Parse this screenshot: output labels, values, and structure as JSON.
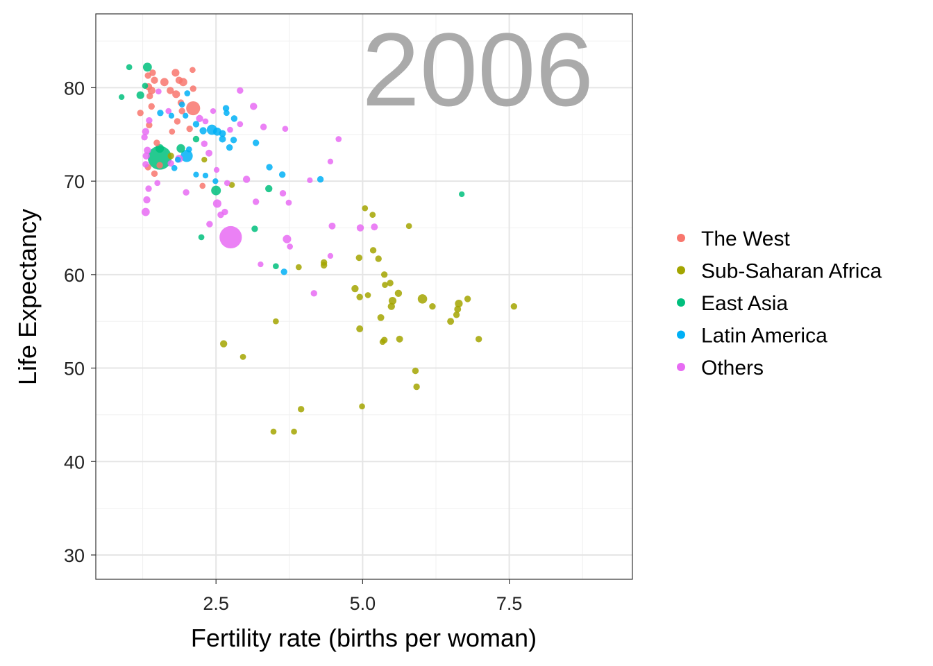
{
  "chart_data": {
    "type": "scatter",
    "title": "",
    "annotation": "2006",
    "xlabel": "Fertility rate (births per woman)",
    "ylabel": "Life Expectancy",
    "xlim": [
      0.45,
      9.6
    ],
    "ylim": [
      27.4,
      87.9
    ],
    "xticks": [
      2.5,
      5.0,
      7.5
    ],
    "xtick_labels": [
      "2.5",
      "5.0",
      "7.5"
    ],
    "yticks": [
      30,
      40,
      50,
      60,
      70,
      80
    ],
    "ytick_labels": [
      "30",
      "40",
      "50",
      "60",
      "70",
      "80"
    ],
    "grid": true,
    "legend_position": "right",
    "size_variable": "population (millions, approx.)",
    "series": [
      {
        "name": "The West",
        "color": "#F8766D",
        "points": [
          [
            1.34,
            81.3,
            10
          ],
          [
            1.42,
            81.6,
            10
          ],
          [
            1.45,
            80.8,
            20
          ],
          [
            1.35,
            80.1,
            20
          ],
          [
            1.4,
            79.7,
            30
          ],
          [
            1.37,
            79.1,
            10
          ],
          [
            1.4,
            78.0,
            10
          ],
          [
            1.21,
            77.3,
            10
          ],
          [
            1.36,
            76.0,
            10
          ],
          [
            1.34,
            71.5,
            10
          ],
          [
            1.45,
            70.8,
            10
          ],
          [
            1.62,
            80.6,
            40
          ],
          [
            1.72,
            79.7,
            20
          ],
          [
            1.81,
            81.6,
            30
          ],
          [
            1.87,
            80.8,
            20
          ],
          [
            1.94,
            80.6,
            40
          ],
          [
            1.82,
            79.3,
            30
          ],
          [
            1.9,
            78.4,
            10
          ],
          [
            2.11,
            77.8,
            300
          ],
          [
            2.1,
            81.9,
            5
          ],
          [
            1.92,
            77.5,
            10
          ],
          [
            1.75,
            75.3,
            5
          ],
          [
            1.49,
            74.1,
            10
          ],
          [
            2.11,
            79.9,
            10
          ],
          [
            2.27,
            69.5,
            5
          ],
          [
            1.54,
            71.7,
            10
          ],
          [
            2.05,
            75.6,
            10
          ],
          [
            1.84,
            76.4,
            10
          ]
        ]
      },
      {
        "name": "Sub-Saharan Africa",
        "color": "#A3A500",
        "points": [
          [
            2.77,
            69.6,
            5
          ],
          [
            2.3,
            72.3,
            3
          ],
          [
            1.73,
            72.7,
            10
          ],
          [
            5.04,
            67.1,
            5
          ],
          [
            5.17,
            66.4,
            5
          ],
          [
            5.79,
            65.2,
            5
          ],
          [
            5.18,
            62.6,
            10
          ],
          [
            5.27,
            61.7,
            10
          ],
          [
            4.94,
            61.8,
            10
          ],
          [
            5.37,
            60.0,
            10
          ],
          [
            4.34,
            61.3,
            10
          ],
          [
            4.34,
            61.0,
            10
          ],
          [
            3.91,
            60.8,
            5
          ],
          [
            4.87,
            58.5,
            20
          ],
          [
            4.95,
            57.6,
            10
          ],
          [
            5.09,
            57.8,
            5
          ],
          [
            5.38,
            58.9,
            5
          ],
          [
            5.47,
            59.1,
            10
          ],
          [
            5.61,
            58.0,
            20
          ],
          [
            5.51,
            57.2,
            30
          ],
          [
            5.49,
            56.6,
            20
          ],
          [
            6.02,
            57.4,
            75
          ],
          [
            6.19,
            56.6,
            10
          ],
          [
            5.31,
            55.4,
            15
          ],
          [
            6.64,
            56.9,
            30
          ],
          [
            6.62,
            56.3,
            15
          ],
          [
            6.79,
            57.4,
            10
          ],
          [
            6.6,
            55.7,
            10
          ],
          [
            6.5,
            55.0,
            15
          ],
          [
            7.58,
            56.6,
            10
          ],
          [
            4.95,
            54.2,
            15
          ],
          [
            3.52,
            55.0,
            5
          ],
          [
            5.63,
            53.1,
            15
          ],
          [
            5.37,
            53.0,
            10
          ],
          [
            5.34,
            52.8,
            5
          ],
          [
            6.98,
            53.1,
            10
          ],
          [
            2.63,
            52.6,
            20
          ],
          [
            2.96,
            51.2,
            5
          ],
          [
            5.9,
            49.7,
            10
          ],
          [
            5.92,
            48.0,
            10
          ],
          [
            3.95,
            45.6,
            10
          ],
          [
            4.99,
            45.9,
            5
          ],
          [
            3.48,
            43.2,
            5
          ],
          [
            3.83,
            43.2,
            5
          ]
        ]
      },
      {
        "name": "East Asia",
        "color": "#00BF7D",
        "points": [
          [
            1.33,
            82.2,
            60
          ],
          [
            1.02,
            82.2,
            5
          ],
          [
            1.29,
            80.2,
            5
          ],
          [
            1.21,
            79.2,
            30
          ],
          [
            0.89,
            79.0,
            3
          ],
          [
            1.54,
            72.5,
            1300
          ],
          [
            1.54,
            73.5,
            50
          ],
          [
            1.9,
            73.5,
            50
          ],
          [
            2.16,
            74.5,
            10
          ],
          [
            2.5,
            69.0,
            85
          ],
          [
            3.4,
            69.2,
            20
          ],
          [
            2.25,
            64.0,
            5
          ],
          [
            3.16,
            64.9,
            10
          ],
          [
            3.52,
            60.9,
            5
          ],
          [
            6.69,
            68.6,
            3
          ]
        ]
      },
      {
        "name": "Latin America",
        "color": "#00B0F6",
        "points": [
          [
            1.55,
            77.3,
            10
          ],
          [
            1.74,
            77.0,
            3
          ],
          [
            1.98,
            77.0,
            3
          ],
          [
            2.01,
            79.4,
            5
          ],
          [
            1.92,
            78.2,
            5
          ],
          [
            2.04,
            73.4,
            5
          ],
          [
            2.0,
            72.7,
            190
          ],
          [
            1.79,
            71.4,
            5
          ],
          [
            2.16,
            76.1,
            10
          ],
          [
            2.28,
            75.4,
            20
          ],
          [
            2.43,
            75.5,
            105
          ],
          [
            2.52,
            75.3,
            40
          ],
          [
            2.61,
            75.1,
            15
          ],
          [
            2.67,
            77.8,
            10
          ],
          [
            2.68,
            77.3,
            5
          ],
          [
            2.81,
            76.7,
            10
          ],
          [
            2.8,
            74.4,
            10
          ],
          [
            2.61,
            74.5,
            15
          ],
          [
            2.73,
            73.6,
            10
          ],
          [
            3.18,
            74.1,
            10
          ],
          [
            3.41,
            71.5,
            10
          ],
          [
            3.63,
            70.7,
            10
          ],
          [
            4.28,
            70.2,
            10
          ],
          [
            2.16,
            70.7,
            3
          ],
          [
            2.32,
            70.6,
            3
          ],
          [
            2.49,
            70.0,
            3
          ],
          [
            3.66,
            60.3,
            10
          ],
          [
            1.85,
            72.3,
            5
          ]
        ]
      },
      {
        "name": "Others",
        "color": "#E76BF3",
        "points": [
          [
            1.52,
            79.6,
            5
          ],
          [
            2.91,
            79.7,
            10
          ],
          [
            3.14,
            78.0,
            20
          ],
          [
            1.69,
            77.5,
            5
          ],
          [
            2.22,
            76.7,
            20
          ],
          [
            1.36,
            76.5,
            10
          ],
          [
            2.45,
            77.5,
            3
          ],
          [
            1.3,
            75.3,
            20
          ],
          [
            1.28,
            74.7,
            10
          ],
          [
            2.32,
            76.4,
            5
          ],
          [
            2.91,
            76.1,
            5
          ],
          [
            2.74,
            75.5,
            5
          ],
          [
            3.31,
            75.8,
            10
          ],
          [
            3.68,
            75.6,
            5
          ],
          [
            4.59,
            74.5,
            5
          ],
          [
            4.45,
            72.1,
            3
          ],
          [
            1.33,
            73.3,
            20
          ],
          [
            1.31,
            72.7,
            20
          ],
          [
            1.3,
            71.8,
            10
          ],
          [
            1.87,
            72.4,
            30
          ],
          [
            1.73,
            71.9,
            10
          ],
          [
            2.3,
            74.0,
            10
          ],
          [
            2.38,
            73.0,
            15
          ],
          [
            1.5,
            69.8,
            5
          ],
          [
            1.35,
            69.2,
            10
          ],
          [
            1.99,
            68.8,
            10
          ],
          [
            1.32,
            68.0,
            20
          ],
          [
            1.3,
            66.7,
            40
          ],
          [
            2.39,
            65.4,
            10
          ],
          [
            2.52,
            67.6,
            45
          ],
          [
            2.58,
            66.4,
            10
          ],
          [
            2.65,
            66.7,
            10
          ],
          [
            2.69,
            69.8,
            5
          ],
          [
            3.02,
            70.2,
            20
          ],
          [
            3.18,
            67.8,
            10
          ],
          [
            2.75,
            64.0,
            1100
          ],
          [
            3.71,
            63.8,
            45
          ],
          [
            3.76,
            63.0,
            5
          ],
          [
            3.64,
            68.7,
            10
          ],
          [
            3.74,
            67.7,
            5
          ],
          [
            4.1,
            70.1,
            3
          ],
          [
            4.48,
            65.2,
            15
          ],
          [
            4.96,
            65.0,
            20
          ],
          [
            5.2,
            65.1,
            15
          ],
          [
            4.45,
            62.0,
            3
          ],
          [
            3.26,
            61.1,
            3
          ],
          [
            4.17,
            58.0,
            10
          ],
          [
            2.51,
            71.2,
            3
          ]
        ]
      }
    ]
  }
}
